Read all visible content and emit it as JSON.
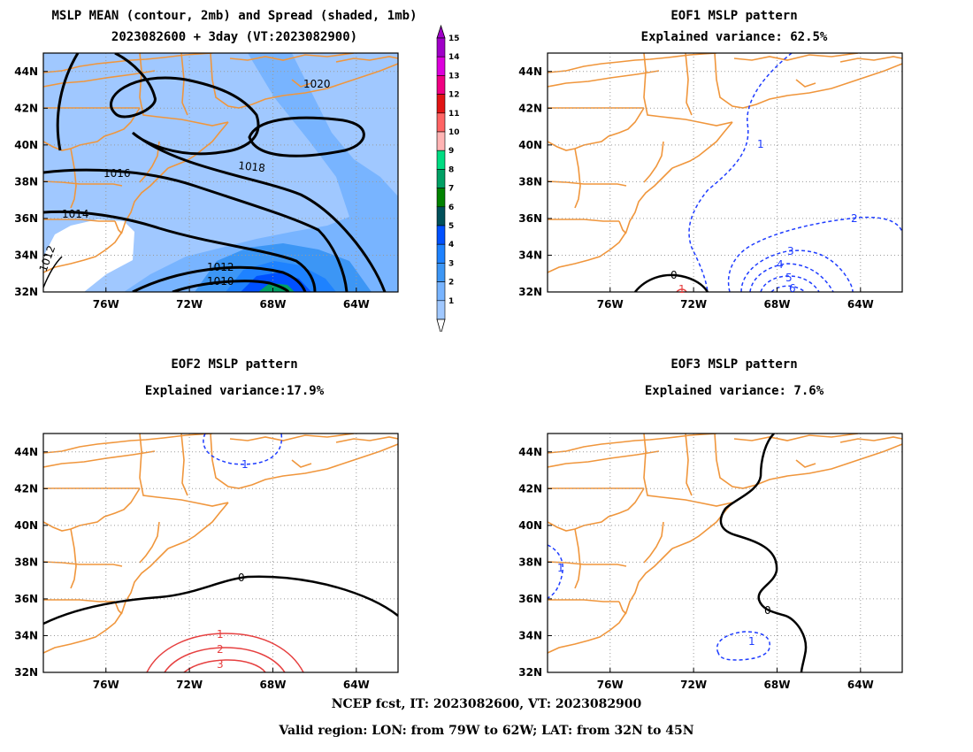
{
  "panels": [
    {
      "id": "mean",
      "title1": "MSLP MEAN (contour, 2mb) and Spread (shaded, 1mb)",
      "title2": "2023082600 + 3day (VT:2023082900)"
    },
    {
      "id": "eof1",
      "title1": "EOF1 MSLP pattern",
      "title2": "Explained variance: 62.5%"
    },
    {
      "id": "eof2",
      "title1": "EOF2 MSLP pattern",
      "title2": "Explained variance:17.9%"
    },
    {
      "id": "eof3",
      "title1": "EOF3 MSLP pattern",
      "title2": "Explained variance: 7.6%"
    }
  ],
  "axes": {
    "lat_ticks": [
      "44N",
      "42N",
      "40N",
      "38N",
      "36N",
      "34N",
      "32N"
    ],
    "lon_ticks": [
      "76W",
      "72W",
      "68W",
      "64W"
    ]
  },
  "colorbar": {
    "labels": [
      "15",
      "14",
      "13",
      "12",
      "11",
      "10",
      "9",
      "8",
      "7",
      "6",
      "5",
      "4",
      "3",
      "2",
      "1"
    ],
    "colors": [
      "#a000c8",
      "#dc00dc",
      "#f00082",
      "#e11414",
      "#ff6464",
      "#ffb4b4",
      "#00dc82",
      "#00a064",
      "#008200",
      "#00505a",
      "#0050ff",
      "#1e82ff",
      "#3c96f5",
      "#78b4ff",
      "#a0c8ff"
    ]
  },
  "contour_labels": {
    "mean": [
      "1020",
      "1018",
      "1016",
      "1014",
      "1012",
      "1010",
      "1012"
    ],
    "eof1": [
      "1",
      "2",
      "3",
      "4",
      "5",
      "6",
      "0",
      "1"
    ],
    "eof2": [
      "1",
      "0",
      "1",
      "2",
      "3"
    ],
    "eof3": [
      "1",
      "0",
      "1"
    ]
  },
  "footer": {
    "line1": "NCEP fcst, IT: 2023082600, VT: 2023082900",
    "line2": "Valid region: LON: from 79W to 62W; LAT: from 32N to 45N"
  }
}
